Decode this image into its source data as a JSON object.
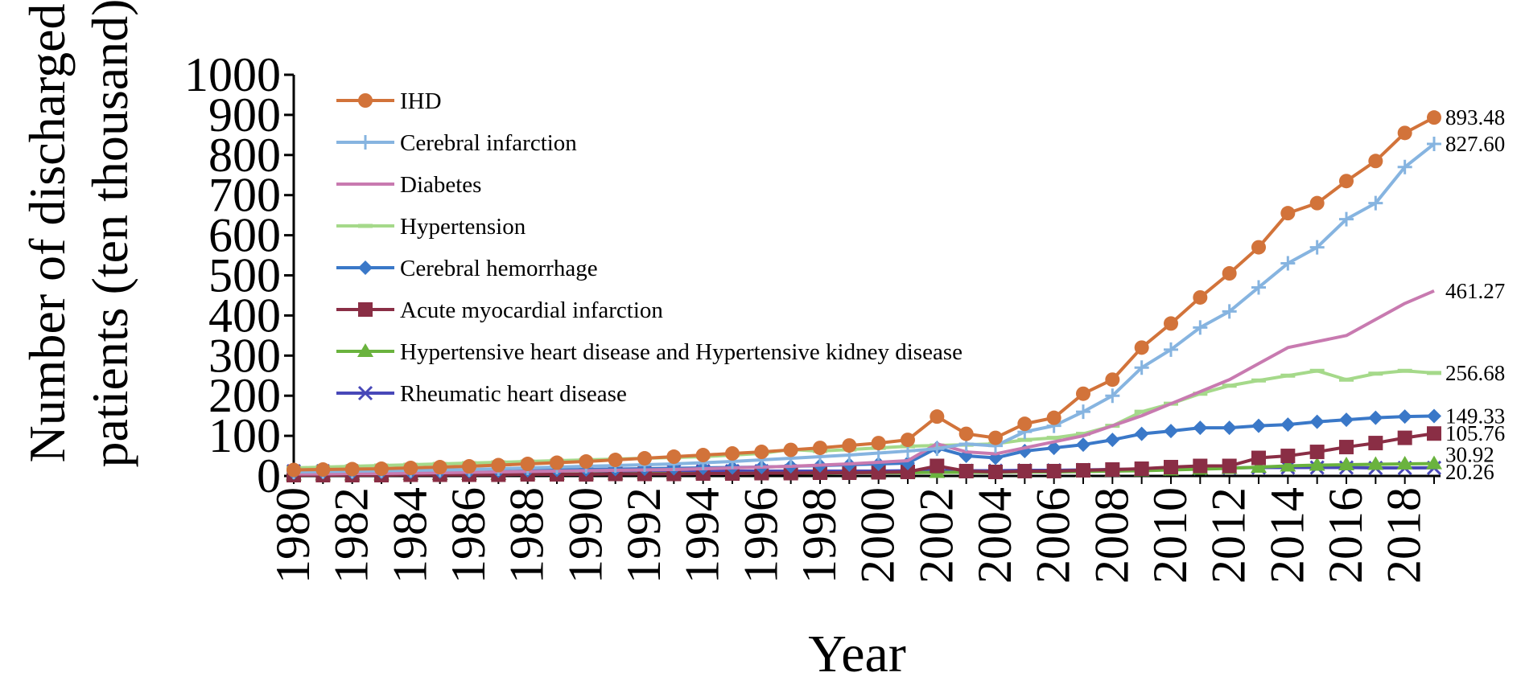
{
  "chart_data": {
    "type": "line",
    "title": "",
    "xlabel": "Year",
    "ylabel": "Number of discharged patients (ten thousand)",
    "ylabel_lines": [
      "Number of discharged",
      "patients (ten thousand)"
    ],
    "ylim": [
      0,
      1000
    ],
    "yticks": [
      0,
      100,
      200,
      300,
      400,
      500,
      600,
      700,
      800,
      900,
      1000
    ],
    "x": [
      1980,
      1981,
      1982,
      1983,
      1984,
      1985,
      1986,
      1987,
      1988,
      1989,
      1990,
      1991,
      1992,
      1993,
      1994,
      1995,
      1996,
      1997,
      1998,
      1999,
      2000,
      2001,
      2002,
      2003,
      2004,
      2005,
      2006,
      2007,
      2008,
      2009,
      2010,
      2011,
      2012,
      2013,
      2014,
      2015,
      2016,
      2017,
      2018,
      2019
    ],
    "xtick_labels": [
      "1980",
      "1982",
      "1984",
      "1986",
      "1988",
      "1990",
      "1992",
      "1994",
      "1996",
      "1998",
      "2000",
      "2002",
      "2004",
      "2006",
      "2008",
      "2010",
      "2012",
      "2014",
      "2016",
      "2018"
    ],
    "legend_position": "top-left",
    "grid": false,
    "series": [
      {
        "name": "IHD",
        "color": "#d2733a",
        "marker": "circle",
        "end_label": "893.48",
        "values": [
          15,
          16,
          17,
          18,
          20,
          22,
          24,
          27,
          30,
          33,
          36,
          40,
          44,
          48,
          52,
          56,
          60,
          65,
          70,
          76,
          82,
          90,
          148,
          105,
          95,
          130,
          145,
          205,
          240,
          320,
          380,
          445,
          505,
          570,
          655,
          680,
          735,
          785,
          855,
          893.48
        ]
      },
      {
        "name": "Cerebral infarction",
        "color": "#86b4e0",
        "marker": "plus",
        "end_label": "827.60",
        "values": [
          10,
          11,
          12,
          13,
          14,
          15,
          16,
          18,
          20,
          22,
          24,
          26,
          28,
          30,
          33,
          36,
          40,
          44,
          48,
          52,
          57,
          62,
          68,
          80,
          75,
          110,
          125,
          160,
          200,
          270,
          315,
          370,
          410,
          470,
          530,
          570,
          640,
          680,
          770,
          827.6
        ]
      },
      {
        "name": "Diabetes",
        "color": "#c87ab0",
        "marker": "none",
        "end_label": "461.27",
        "values": [
          5,
          5,
          6,
          6,
          7,
          8,
          9,
          10,
          11,
          12,
          13,
          14,
          15,
          16,
          18,
          20,
          22,
          24,
          27,
          30,
          34,
          38,
          80,
          60,
          55,
          70,
          85,
          100,
          125,
          150,
          180,
          210,
          240,
          280,
          320,
          335,
          350,
          390,
          430,
          461.27
        ]
      },
      {
        "name": "Hypertension",
        "color": "#a5d98a",
        "marker": "dash",
        "end_label": "256.68",
        "values": [
          20,
          22,
          24,
          26,
          28,
          30,
          32,
          34,
          36,
          38,
          40,
          42,
          44,
          46,
          48,
          52,
          56,
          66,
          62,
          66,
          70,
          74,
          76,
          78,
          80,
          90,
          95,
          105,
          125,
          160,
          180,
          205,
          225,
          238,
          250,
          262,
          240,
          255,
          262,
          256.68
        ]
      },
      {
        "name": "Cerebral hemorrhage",
        "color": "#3a78c8",
        "marker": "diamond",
        "end_label": "149.33",
        "values": [
          8,
          9,
          9,
          10,
          10,
          11,
          12,
          13,
          14,
          15,
          16,
          17,
          18,
          19,
          20,
          21,
          22,
          24,
          26,
          28,
          30,
          32,
          70,
          50,
          45,
          62,
          70,
          78,
          90,
          105,
          112,
          120,
          120,
          125,
          128,
          135,
          140,
          145,
          148,
          149.33
        ]
      },
      {
        "name": "Acute myocardial infarction",
        "color": "#8a2e45",
        "marker": "square",
        "end_label": "105.76",
        "values": [
          2,
          2,
          2,
          2,
          3,
          3,
          3,
          3,
          4,
          4,
          4,
          5,
          5,
          5,
          6,
          6,
          7,
          7,
          8,
          8,
          9,
          10,
          25,
          12,
          10,
          12,
          12,
          14,
          16,
          18,
          22,
          25,
          25,
          45,
          50,
          60,
          72,
          82,
          95,
          105.76
        ]
      },
      {
        "name": "Hypertensive heart disease and Hypertensive kidney disease",
        "color": "#6ab33e",
        "marker": "triangle",
        "end_label": "30.92",
        "values": [
          3,
          3,
          3,
          3,
          4,
          4,
          4,
          4,
          5,
          5,
          5,
          5,
          6,
          6,
          6,
          6,
          7,
          7,
          7,
          8,
          8,
          8,
          9,
          9,
          9,
          10,
          10,
          11,
          12,
          13,
          15,
          17,
          19,
          22,
          25,
          27,
          28,
          29,
          30,
          30.92
        ]
      },
      {
        "name": "Rheumatic heart disease",
        "color": "#4848b8",
        "marker": "x",
        "end_label": "20.26",
        "values": [
          12,
          12,
          12,
          12,
          12,
          12,
          12,
          12,
          12,
          12,
          12,
          12,
          12,
          12,
          12,
          12,
          12,
          12,
          12,
          12,
          12,
          13,
          13,
          13,
          13,
          14,
          14,
          15,
          16,
          17,
          18,
          19,
          20,
          21,
          21,
          21,
          21,
          20,
          20,
          20.26
        ]
      }
    ]
  }
}
